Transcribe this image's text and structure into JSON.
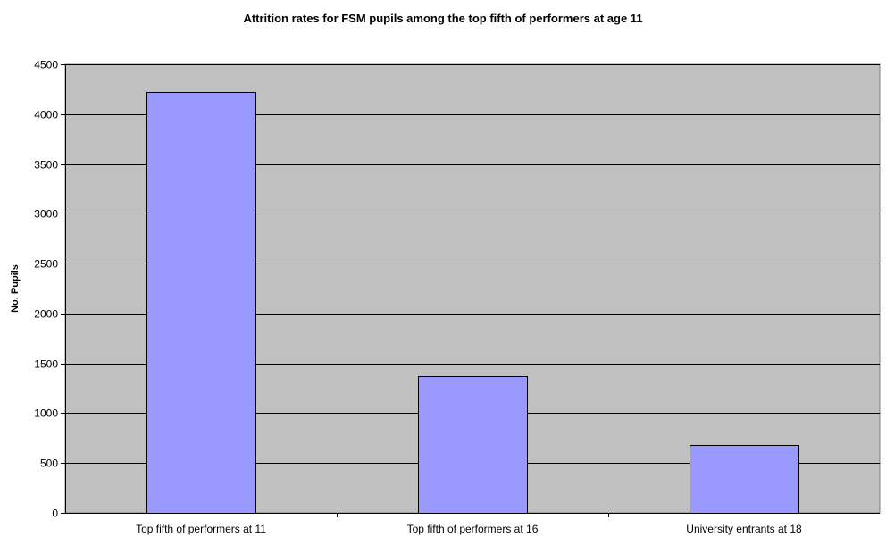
{
  "chart_data": {
    "type": "bar",
    "title": "Attrition rates for FSM pupils among the top fifth of performers at age 11",
    "xlabel": "",
    "ylabel": "No. Pupils",
    "categories": [
      "Top fifth of performers at 11",
      "Top fifth of performers at 16",
      "University entrants at 18"
    ],
    "values": [
      4220,
      1370,
      680
    ],
    "ylim": [
      0,
      4500
    ],
    "yticks": [
      0,
      500,
      1000,
      1500,
      2000,
      2500,
      3000,
      3500,
      4000,
      4500
    ],
    "grid": true,
    "legend": "none",
    "colors": {
      "bar_fill": "#9999ff",
      "bar_stroke": "#000000",
      "plot_background": "#c0c0c0",
      "gridline": "#000000"
    }
  }
}
